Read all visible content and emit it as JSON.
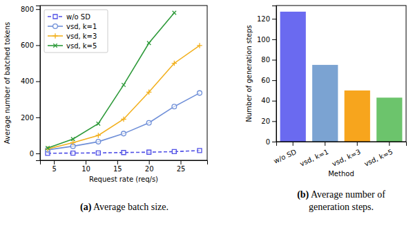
{
  "chart_data": [
    {
      "type": "line",
      "title": "(a) Average batch size.",
      "x_label": "Request rate (req/s)",
      "y_label": "Average number of batched tokens",
      "x": [
        4,
        8,
        12,
        16,
        20,
        24,
        28
      ],
      "series": [
        {
          "name": "w/o SD",
          "color": "#5050e6",
          "marker": "square",
          "line_style": "dashed",
          "values": [
            1,
            2,
            3,
            5,
            7,
            10,
            16
          ]
        },
        {
          "name": "vsd, k=1",
          "color": "#6f8fd8",
          "marker": "circle",
          "line_style": "solid",
          "values": [
            20,
            40,
            65,
            110,
            170,
            260,
            335
          ]
        },
        {
          "name": "vsd, k=3",
          "color": "#f2b01e",
          "marker": "plus",
          "line_style": "solid",
          "values": [
            25,
            60,
            100,
            190,
            340,
            500,
            598
          ]
        },
        {
          "name": "vsd, k=5",
          "color": "#2e9a3a",
          "marker": "x",
          "line_style": "solid",
          "values": [
            30,
            80,
            165,
            380,
            612,
            780,
            null
          ]
        }
      ],
      "xlim": [
        2.8,
        29.2
      ],
      "ylim": [
        -38,
        820
      ],
      "xticks": [
        5,
        10,
        15,
        20,
        25
      ],
      "yticks": [
        0,
        200,
        400,
        600,
        800
      ],
      "legend": "upper left",
      "grid": false
    },
    {
      "type": "bar",
      "title": "(b) Average number of generation steps.",
      "x_label": "Method",
      "y_label": "Number of generation steps",
      "categories": [
        "w/o SD",
        "vsd, k=1",
        "vsd, k=3",
        "vsd, k=5"
      ],
      "values": [
        127,
        75,
        50,
        43
      ],
      "colors": [
        "#6a6af0",
        "#7ba3d2",
        "#f7a51d",
        "#6cc46c"
      ],
      "ylim": [
        0,
        133
      ],
      "yticks": [
        0,
        20,
        40,
        60,
        80,
        100,
        120
      ],
      "grid": false
    }
  ]
}
